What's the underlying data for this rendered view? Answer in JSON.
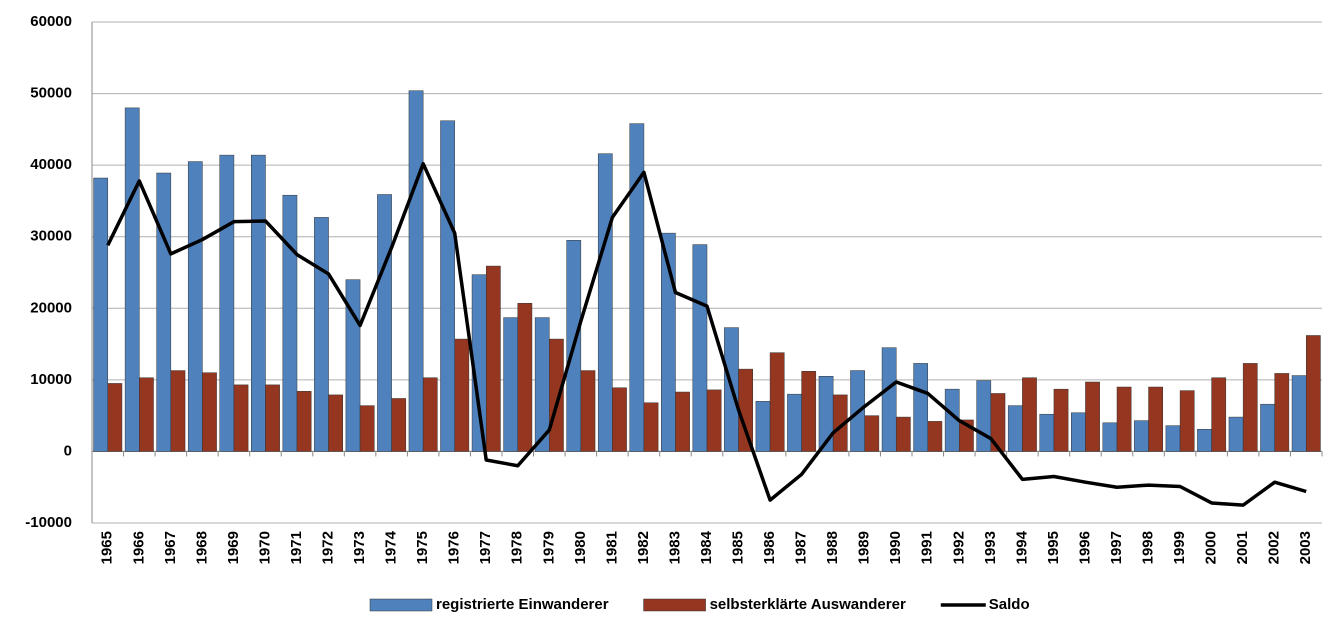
{
  "chart_data": {
    "type": "bar",
    "categories": [
      "1965",
      "1966",
      "1967",
      "1968",
      "1969",
      "1970",
      "1971",
      "1972",
      "1973",
      "1974",
      "1975",
      "1976",
      "1977",
      "1978",
      "1979",
      "1980",
      "1981",
      "1982",
      "1983",
      "1984",
      "1985",
      "1986",
      "1987",
      "1988",
      "1989",
      "1990",
      "1991",
      "1992",
      "1993",
      "1994",
      "1995",
      "1996",
      "1997",
      "1998",
      "1999",
      "2000",
      "2001",
      "2002",
      "2003"
    ],
    "series": [
      {
        "name": "registrierte Einwanderer",
        "color": "#4f81bd",
        "values": [
          38200,
          48000,
          38900,
          40500,
          41400,
          41400,
          35800,
          32700,
          24000,
          35900,
          50400,
          46200,
          24700,
          18700,
          18700,
          29500,
          41600,
          45800,
          30500,
          28900,
          17300,
          7000,
          8000,
          10500,
          11300,
          14500,
          12300,
          8700,
          9900,
          6400,
          5200,
          5400,
          4000,
          4300,
          3600,
          3100,
          4800,
          6600,
          10600
        ]
      },
      {
        "name": "selbsterklärte Auswanderer",
        "color": "#953620",
        "values": [
          9500,
          10300,
          11300,
          11000,
          9300,
          9300,
          8400,
          7900,
          6400,
          7400,
          10300,
          15700,
          25900,
          20700,
          15700,
          11300,
          8900,
          6800,
          8300,
          8600,
          11500,
          13800,
          11200,
          7900,
          5000,
          4800,
          4200,
          4400,
          8100,
          10300,
          8700,
          9700,
          9000,
          9000,
          8500,
          10300,
          12300,
          10900,
          16200
        ]
      },
      {
        "name": "Saldo",
        "type": "line",
        "color": "#000000",
        "values": [
          28800,
          37800,
          27600,
          29600,
          32100,
          32200,
          27500,
          24800,
          17600,
          28500,
          40200,
          30500,
          -1200,
          -2000,
          3000,
          18200,
          32700,
          39000,
          22200,
          20300,
          5800,
          -6800,
          -3200,
          2600,
          6300,
          9700,
          8100,
          4300,
          1800,
          -3900,
          -3500,
          -4300,
          -5000,
          -4700,
          -4900,
          -7200,
          -7500,
          -4300,
          -5600
        ]
      }
    ],
    "ylim": [
      -10000,
      60000
    ],
    "yticks": [
      -10000,
      0,
      10000,
      20000,
      30000,
      40000,
      50000,
      60000
    ],
    "grid": true,
    "legend": "bottom"
  }
}
